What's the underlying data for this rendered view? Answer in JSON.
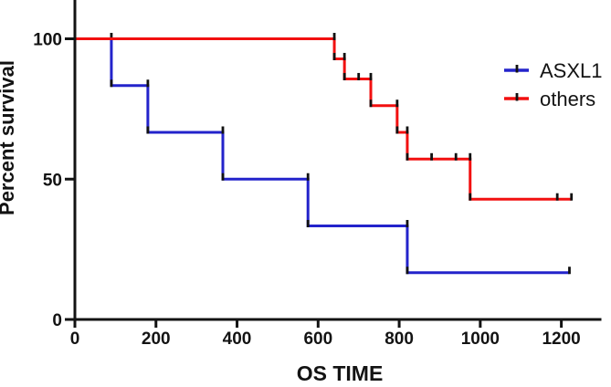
{
  "chart_data": {
    "type": "line",
    "subtype": "kaplan-meier-step",
    "xlabel": "OS TIME",
    "ylabel": "Percent survival",
    "xlim": [
      0,
      1300
    ],
    "ylim": [
      0,
      100
    ],
    "xticks": [
      0,
      200,
      400,
      600,
      800,
      1000,
      1200
    ],
    "yticks": [
      0,
      50,
      100
    ],
    "grid": false,
    "legend_position": "right",
    "axis_color": "#131313",
    "event_tick_color": "#111111",
    "series": [
      {
        "name": "ASXL1",
        "color": "#2323cb",
        "levels": [
          100,
          83.33,
          66.67,
          50,
          33.33,
          16.67
        ],
        "drop_times": [
          90,
          180,
          365,
          575,
          820
        ],
        "end_time": 1220,
        "censored_times": [
          1220
        ]
      },
      {
        "name": "others",
        "color": "#f21010",
        "levels": [
          100,
          92.86,
          85.71,
          76.19,
          66.67,
          57.14,
          42.86
        ],
        "drop_times": [
          640,
          665,
          730,
          795,
          820,
          975
        ],
        "end_time": 1225,
        "censored_times": [
          700,
          880,
          940,
          1190,
          1225
        ]
      }
    ]
  }
}
